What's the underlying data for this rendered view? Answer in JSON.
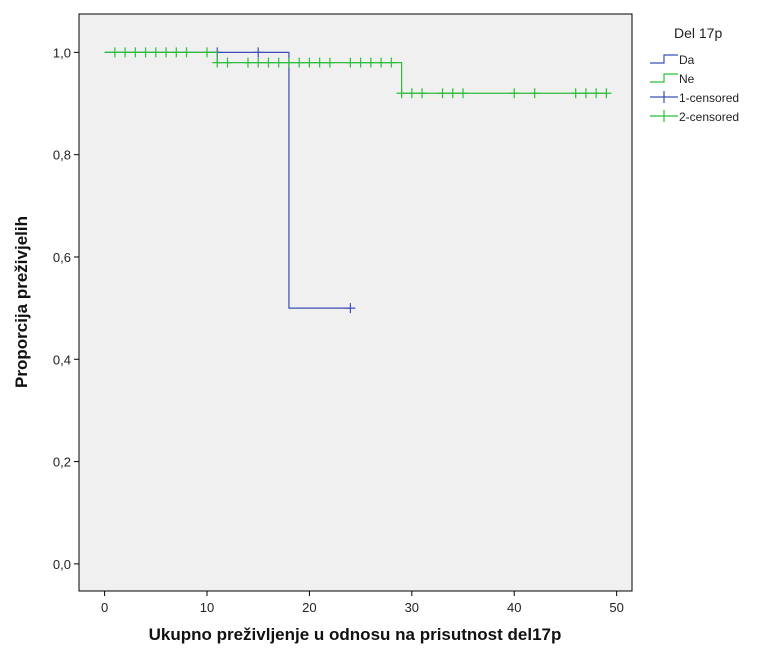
{
  "chart_data": {
    "type": "line",
    "subtype": "kaplan-meier",
    "title": "",
    "xlabel": "Ukupno preživljenje u odnosu na prisutnost del17p",
    "ylabel": "Proporcija preživjelih",
    "xlim": [
      -2.5,
      51.5
    ],
    "ylim": [
      -0.053,
      1.075
    ],
    "x_ticks": [
      0,
      10,
      20,
      30,
      40,
      50
    ],
    "x_tick_labels": [
      "0",
      "10",
      "20",
      "30",
      "40",
      "50"
    ],
    "y_ticks": [
      0.0,
      0.2,
      0.4,
      0.6,
      0.8,
      1.0
    ],
    "y_tick_labels": [
      "0,0",
      "0,2",
      "0,4",
      "0,6",
      "0,8",
      "1,0"
    ],
    "grid": false,
    "legend_title": "Del 17p",
    "legend_position": "right",
    "legend_items": [
      {
        "label": "Da",
        "kind": "step",
        "color": "#3b4fb8"
      },
      {
        "label": "Ne",
        "kind": "step",
        "color": "#2dbd3a"
      },
      {
        "label": "1-censored",
        "kind": "plus",
        "color": "#3b4fb8"
      },
      {
        "label": "2-censored",
        "kind": "plus",
        "color": "#2dbd3a"
      }
    ],
    "series": [
      {
        "name": "Da",
        "color": "#3b4fb8",
        "steps": [
          [
            0,
            1.0
          ],
          [
            18,
            0.5
          ]
        ],
        "end_x": 24,
        "censored": [
          [
            11,
            1.0
          ],
          [
            15,
            1.0
          ],
          [
            24,
            0.5
          ]
        ]
      },
      {
        "name": "Ne",
        "color": "#2dbd3a",
        "steps": [
          [
            0,
            1.0
          ],
          [
            11,
            0.98
          ],
          [
            29,
            0.92
          ]
        ],
        "end_x": 49,
        "censored": [
          [
            1,
            1.0
          ],
          [
            2,
            1.0
          ],
          [
            3,
            1.0
          ],
          [
            4,
            1.0
          ],
          [
            5,
            1.0
          ],
          [
            6,
            1.0
          ],
          [
            7,
            1.0
          ],
          [
            8,
            1.0
          ],
          [
            10,
            1.0
          ],
          [
            11,
            0.98
          ],
          [
            12,
            0.98
          ],
          [
            14,
            0.98
          ],
          [
            15,
            0.98
          ],
          [
            16,
            0.98
          ],
          [
            17,
            0.98
          ],
          [
            18,
            0.98
          ],
          [
            19,
            0.98
          ],
          [
            20,
            0.98
          ],
          [
            21,
            0.98
          ],
          [
            22,
            0.98
          ],
          [
            24,
            0.98
          ],
          [
            25,
            0.98
          ],
          [
            26,
            0.98
          ],
          [
            27,
            0.98
          ],
          [
            28,
            0.98
          ],
          [
            29,
            0.92
          ],
          [
            30,
            0.92
          ],
          [
            31,
            0.92
          ],
          [
            33,
            0.92
          ],
          [
            34,
            0.92
          ],
          [
            35,
            0.92
          ],
          [
            40,
            0.92
          ],
          [
            42,
            0.92
          ],
          [
            46,
            0.92
          ],
          [
            47,
            0.92
          ],
          [
            48,
            0.92
          ],
          [
            49,
            0.92
          ]
        ]
      }
    ]
  }
}
